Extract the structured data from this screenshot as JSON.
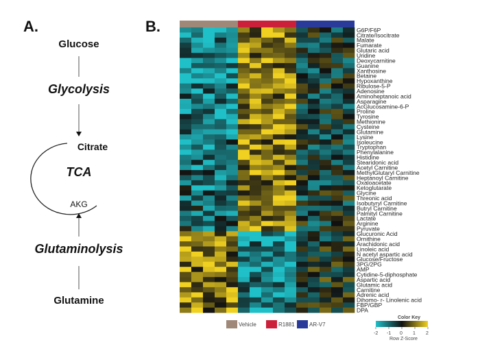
{
  "panel_a": {
    "label": "A.",
    "start": "Glucose",
    "pathway1": "Glycolysis",
    "node_citrate": "Citrate",
    "cycle": "TCA",
    "node_akg": "AKG",
    "pathway2": "Glutaminolysis",
    "end": "Glutamine"
  },
  "panel_b": {
    "label": "B.",
    "metabolites": [
      "G6P/F6P",
      "Citrate/Isocitrate",
      "Malate",
      "Fumarate",
      "Glutaric acid",
      "Uridine",
      "Deoxycarnitine",
      "Guanine",
      "Xanthosine",
      "Betaine",
      "Hypoxanthine",
      "Ribulose-5-P",
      "Adenosine",
      "Aminoheptanoic acid",
      "Asparagine",
      "AcGlucosamine-6-P",
      "Proline",
      "Tyrosine",
      "Methionine",
      "Cysteine",
      "Glutamine",
      "Lysine",
      "Isoleucine",
      "Tryptophan",
      "Phenylalanine",
      "Histidine",
      "Stearidonic acid",
      "Acetyl Carnitine",
      "MethylGlutaryl Carnitine",
      "Heptanoyl Carnitine",
      "Oxaloacetate",
      "Ketoglutarate",
      "Glycine",
      "Threonic acid",
      "Isobutyryl Carnitine",
      "Butryl Carnitine",
      "Palmityl Carnitine",
      "Lactate",
      "Arginine",
      "Pyruvate",
      "Glucuronic Acid",
      "Ornithine",
      "Arachidonic acid",
      "Linoleic acid",
      "N acetyl aspartic acid",
      "Glucose/Fructose",
      "3PG/2PG",
      "AMP",
      "Cytidine-5-diphosphate",
      "Aspartic acid",
      "Glutamic acid",
      "Carnitine",
      "Adrenic acid",
      "Dihomo- r- Linolenic acid",
      "FBP/GBP",
      "DPA"
    ],
    "groups": [
      {
        "name": "Vehicle",
        "color": "#a08878"
      },
      {
        "name": "R1881",
        "color": "#cc1f3a"
      },
      {
        "name": "AR-V7",
        "color": "#2a3a9a"
      }
    ],
    "color_key": {
      "title": "Color Key",
      "axis_label": "Row Z-Score",
      "ticks": [
        "-2",
        "-1",
        "0",
        "1",
        "2"
      ],
      "low_color": "#20c0c8",
      "mid_color": "#111111",
      "high_color": "#f0d020"
    }
  }
}
